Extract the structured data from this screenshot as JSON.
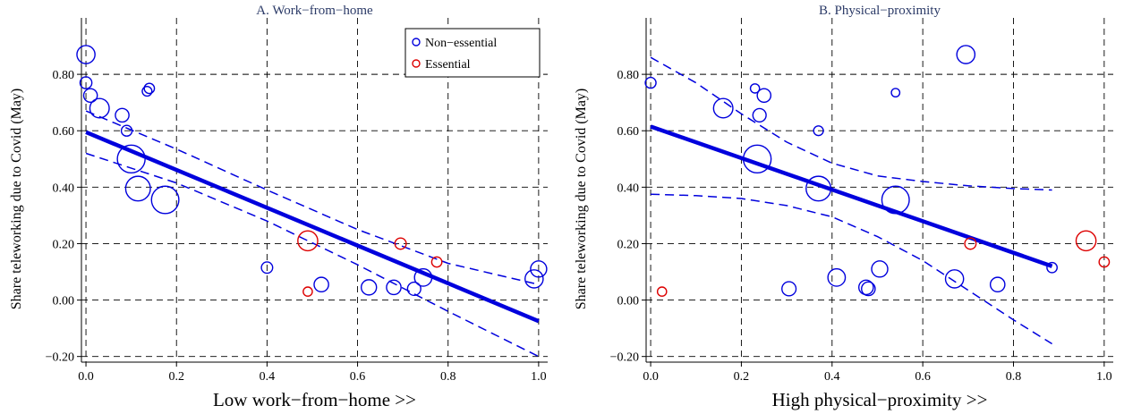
{
  "chart_data": [
    {
      "type": "scatter",
      "title": "A. Work−from−home",
      "xlabel": "Low work−from−home >>",
      "ylabel": "Share teleworking due to Covid (May)",
      "xlim": [
        -0.01,
        1.02
      ],
      "ylim": [
        -0.22,
        1.0
      ],
      "xticks": [
        0.0,
        0.2,
        0.4,
        0.6,
        0.8,
        1.0
      ],
      "xtick_labels": [
        "0.0",
        "0.2",
        "0.4",
        "0.6",
        "0.8",
        "1.0"
      ],
      "yticks": [
        -0.2,
        0.0,
        0.2,
        0.4,
        0.6,
        0.8
      ],
      "ytick_labels": [
        "−0.20",
        "0.00",
        "0.20",
        "0.40",
        "0.60",
        "0.80"
      ],
      "grid": true,
      "legend_position": "top-right",
      "series": [
        {
          "name": "Non−essential",
          "color": "#0000dd",
          "points": [
            {
              "x": 0.0,
              "y": 0.87,
              "w": 1.4
            },
            {
              "x": 0.0,
              "y": 0.77,
              "w": 0.6
            },
            {
              "x": 0.01,
              "y": 0.725,
              "w": 0.8
            },
            {
              "x": 0.03,
              "y": 0.68,
              "w": 1.6
            },
            {
              "x": 0.08,
              "y": 0.655,
              "w": 0.8
            },
            {
              "x": 0.09,
              "y": 0.6,
              "w": 0.5
            },
            {
              "x": 0.135,
              "y": 0.74,
              "w": 0.4
            },
            {
              "x": 0.14,
              "y": 0.75,
              "w": 0.45
            },
            {
              "x": 0.1,
              "y": 0.5,
              "w": 3.3
            },
            {
              "x": 0.115,
              "y": 0.395,
              "w": 2.6
            },
            {
              "x": 0.175,
              "y": 0.355,
              "w": 3.2
            },
            {
              "x": 0.4,
              "y": 0.115,
              "w": 0.55
            },
            {
              "x": 0.52,
              "y": 0.055,
              "w": 0.9
            },
            {
              "x": 0.625,
              "y": 0.045,
              "w": 1.0
            },
            {
              "x": 0.68,
              "y": 0.045,
              "w": 0.9
            },
            {
              "x": 0.725,
              "y": 0.04,
              "w": 0.75
            },
            {
              "x": 0.745,
              "y": 0.08,
              "w": 1.3
            },
            {
              "x": 0.99,
              "y": 0.075,
              "w": 1.4
            },
            {
              "x": 1.0,
              "y": 0.11,
              "w": 1.1
            }
          ]
        },
        {
          "name": "Essential",
          "color": "#dd0000",
          "points": [
            {
              "x": 0.49,
              "y": 0.21,
              "w": 1.7
            },
            {
              "x": 0.49,
              "y": 0.03,
              "w": 0.35
            },
            {
              "x": 0.695,
              "y": 0.2,
              "w": 0.55
            },
            {
              "x": 0.775,
              "y": 0.135,
              "w": 0.45
            }
          ]
        }
      ],
      "fit_line": {
        "x": [
          0.0,
          1.0
        ],
        "y": [
          0.595,
          -0.075
        ]
      },
      "ci_upper": {
        "x": [
          0.0,
          0.2,
          0.4,
          0.6,
          0.8,
          1.0
        ],
        "y": [
          0.67,
          0.535,
          0.39,
          0.25,
          0.13,
          0.055
        ]
      },
      "ci_lower": {
        "x": [
          0.0,
          0.2,
          0.4,
          0.6,
          0.8,
          1.0
        ],
        "y": [
          0.52,
          0.415,
          0.28,
          0.125,
          -0.04,
          -0.2
        ]
      }
    },
    {
      "type": "scatter",
      "title": "B. Physical−proximity",
      "xlabel": "High physical−proximity >>",
      "ylabel": "Share teleworking due to Covid (May)",
      "xlim": [
        -0.01,
        1.02
      ],
      "ylim": [
        -0.22,
        1.0
      ],
      "xticks": [
        0.0,
        0.2,
        0.4,
        0.6,
        0.8,
        1.0
      ],
      "xtick_labels": [
        "0.0",
        "0.2",
        "0.4",
        "0.6",
        "0.8",
        "1.0"
      ],
      "yticks": [
        -0.2,
        0.0,
        0.2,
        0.4,
        0.6,
        0.8
      ],
      "ytick_labels": [
        "−0.20",
        "0.00",
        "0.20",
        "0.40",
        "0.60",
        "0.80"
      ],
      "grid": true,
      "series": [
        {
          "name": "Non−essential",
          "color": "#0000dd",
          "points": [
            {
              "x": 0.0,
              "y": 0.77,
              "w": 0.5
            },
            {
              "x": 0.16,
              "y": 0.68,
              "w": 1.6
            },
            {
              "x": 0.23,
              "y": 0.75,
              "w": 0.35
            },
            {
              "x": 0.24,
              "y": 0.655,
              "w": 0.75
            },
            {
              "x": 0.25,
              "y": 0.725,
              "w": 0.8
            },
            {
              "x": 0.235,
              "y": 0.5,
              "w": 3.3
            },
            {
              "x": 0.37,
              "y": 0.6,
              "w": 0.4
            },
            {
              "x": 0.54,
              "y": 0.735,
              "w": 0.3
            },
            {
              "x": 0.695,
              "y": 0.87,
              "w": 1.4
            },
            {
              "x": 0.37,
              "y": 0.395,
              "w": 2.6
            },
            {
              "x": 0.54,
              "y": 0.355,
              "w": 3.2
            },
            {
              "x": 0.305,
              "y": 0.04,
              "w": 0.85
            },
            {
              "x": 0.41,
              "y": 0.08,
              "w": 1.3
            },
            {
              "x": 0.475,
              "y": 0.045,
              "w": 0.9
            },
            {
              "x": 0.48,
              "y": 0.04,
              "w": 0.8
            },
            {
              "x": 0.505,
              "y": 0.11,
              "w": 1.1
            },
            {
              "x": 0.67,
              "y": 0.075,
              "w": 1.4
            },
            {
              "x": 0.765,
              "y": 0.055,
              "w": 0.9
            },
            {
              "x": 0.885,
              "y": 0.115,
              "w": 0.45
            }
          ]
        },
        {
          "name": "Essential",
          "color": "#dd0000",
          "points": [
            {
              "x": 0.025,
              "y": 0.03,
              "w": 0.35
            },
            {
              "x": 0.705,
              "y": 0.2,
              "w": 0.55
            },
            {
              "x": 0.96,
              "y": 0.21,
              "w": 1.7
            },
            {
              "x": 1.0,
              "y": 0.135,
              "w": 0.45
            }
          ]
        }
      ],
      "fit_line": {
        "x": [
          0.0,
          0.885
        ],
        "y": [
          0.615,
          0.12
        ]
      },
      "ci_upper": {
        "x": [
          0.0,
          0.1,
          0.2,
          0.3,
          0.4,
          0.5,
          0.6,
          0.7,
          0.8,
          0.885
        ],
        "y": [
          0.86,
          0.77,
          0.66,
          0.56,
          0.485,
          0.44,
          0.42,
          0.405,
          0.395,
          0.39
        ]
      },
      "ci_lower": {
        "x": [
          0.0,
          0.1,
          0.2,
          0.3,
          0.4,
          0.5,
          0.6,
          0.7,
          0.8,
          0.885
        ],
        "y": [
          0.375,
          0.37,
          0.36,
          0.335,
          0.295,
          0.225,
          0.14,
          0.035,
          -0.07,
          -0.155
        ]
      }
    }
  ]
}
